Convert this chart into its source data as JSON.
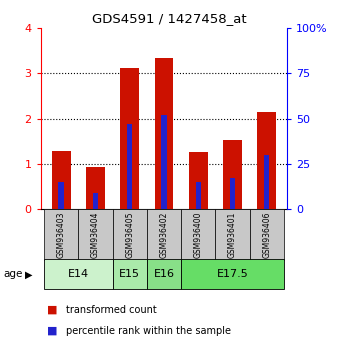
{
  "title": "GDS4591 / 1427458_at",
  "samples": [
    "GSM936403",
    "GSM936404",
    "GSM936405",
    "GSM936402",
    "GSM936400",
    "GSM936401",
    "GSM936406"
  ],
  "transformed_counts": [
    1.28,
    0.92,
    3.12,
    3.35,
    1.27,
    1.52,
    2.15
  ],
  "percentile_ranks_pct": [
    15,
    9,
    47,
    52,
    15,
    17,
    30
  ],
  "age_groups": [
    {
      "label": "E14",
      "start": 0,
      "end": 2,
      "color": "#ccf2cc"
    },
    {
      "label": "E15",
      "start": 2,
      "end": 3,
      "color": "#aaeaaa"
    },
    {
      "label": "E16",
      "start": 3,
      "end": 4,
      "color": "#88e088"
    },
    {
      "label": "E17.5",
      "start": 4,
      "end": 7,
      "color": "#66dd66"
    }
  ],
  "bar_color": "#cc1100",
  "percentile_color": "#2222cc",
  "left_ylim": [
    0,
    4
  ],
  "right_ylim": [
    0,
    100
  ],
  "left_yticks": [
    0,
    1,
    2,
    3,
    4
  ],
  "right_yticks": [
    0,
    25,
    50,
    75,
    100
  ],
  "right_yticklabels": [
    "0",
    "25",
    "50",
    "75",
    "100%"
  ],
  "background_color": "#ffffff",
  "bar_width": 0.55,
  "sample_bg_color": "#c8c8c8"
}
